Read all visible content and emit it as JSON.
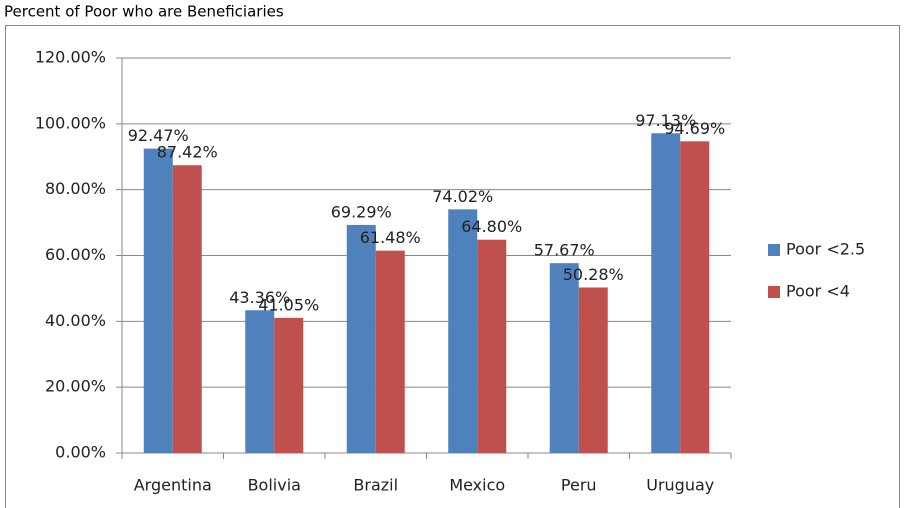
{
  "chart_data": {
    "type": "bar",
    "title": "Percent of Poor who are Beneficiaries",
    "categories": [
      "Argentina",
      "Bolivia",
      "Brazil",
      "Mexico",
      "Peru",
      "Uruguay"
    ],
    "series": [
      {
        "name": "Poor <2.5",
        "color": "#4f81bd",
        "values": [
          92.47,
          43.36,
          69.29,
          74.02,
          57.67,
          97.13
        ],
        "value_labels": [
          "92.47%",
          "43.36%",
          "69.29%",
          "74.02%",
          "57.67%",
          "97.13%"
        ]
      },
      {
        "name": "Poor <4",
        "color": "#c0504d",
        "values": [
          87.42,
          41.05,
          61.48,
          64.8,
          50.28,
          94.69
        ],
        "value_labels": [
          "87.42%",
          "41.05%",
          "61.48%",
          "64.80%",
          "50.28%",
          "94.69%"
        ]
      }
    ],
    "ylim": [
      0,
      120
    ],
    "yticks": [
      {
        "value": 0,
        "label": "0.00%"
      },
      {
        "value": 20,
        "label": "20.00%"
      },
      {
        "value": 40,
        "label": "40.00%"
      },
      {
        "value": 60,
        "label": "60.00%"
      },
      {
        "value": 80,
        "label": "80.00%"
      },
      {
        "value": 100,
        "label": "100.00%"
      },
      {
        "value": 120,
        "label": "120.00%"
      }
    ],
    "grid": true,
    "legend": "right"
  }
}
